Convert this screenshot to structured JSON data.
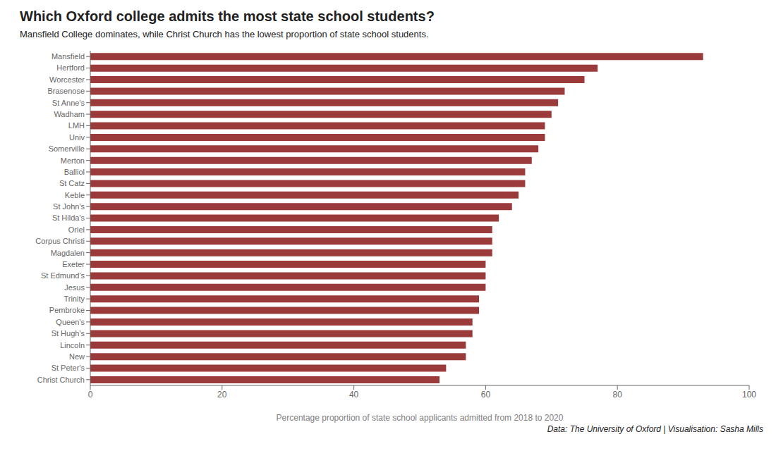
{
  "chart_data": {
    "type": "bar",
    "orientation": "horizontal",
    "title": "Which Oxford college admits the most state school students?",
    "subtitle": "Mansfield College dominates, while Christ Church has the lowest proportion of state school students.",
    "xlabel": "Percentage proportion of state school applicants admitted from 2018 to 2020",
    "annotations": [
      "Data: The University of Oxford | Visualisation: Sasha Mills"
    ],
    "categories": [
      "Mansfield",
      "Hertford",
      "Worcester",
      "Brasenose",
      "St Anne's",
      "Wadham",
      "LMH",
      "Univ",
      "Somerville",
      "Merton",
      "Balliol",
      "St Catz",
      "Keble",
      "St John's",
      "St Hilda's",
      "Oriel",
      "Corpus Christi",
      "Magdalen",
      "Exeter",
      "St Edmund's",
      "Jesus",
      "Trinity",
      "Pembroke",
      "Queen's",
      "St Hugh's",
      "Lincoln",
      "New",
      "St Peter's",
      "Christ Church"
    ],
    "values": [
      93,
      77,
      75,
      72,
      71,
      70,
      69,
      69,
      68,
      67,
      66,
      66,
      65,
      64,
      62,
      61,
      61,
      61,
      60,
      60,
      60,
      59,
      59,
      58,
      58,
      57,
      57,
      54,
      53
    ],
    "color": "#9b3a3a",
    "xlim": [
      0,
      100
    ],
    "xticks": [
      0,
      20,
      40,
      60,
      80,
      100
    ],
    "grid": false
  }
}
